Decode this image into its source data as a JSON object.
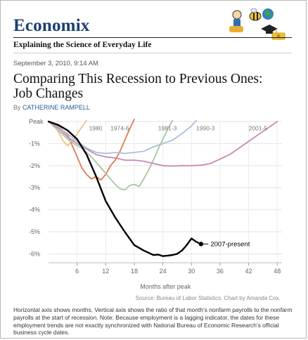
{
  "blog": {
    "name": "Economix",
    "tagline": "Explaining the Science of Everyday Life"
  },
  "article": {
    "dateline": "September 3, 2010, 9:14 AM",
    "title": "Comparing This Recession to Previous Ones: Job Changes",
    "byline_prefix": "By",
    "author": "CATHERINE RAMPELL",
    "source": "Source: Bureau of Labor Statistics. Chart by Amanda Cox.",
    "notes": "Horizontal axis shows months. Vertical axis shows the ratio of that month’s nonfarm payrolls to the nonfarm payrolls at the start of recession. Note: Because employment is a lagging indicator, the dates for these employment trends are not exactly synchronized with National Bureau of Economic Research’s official business cycle dates."
  },
  "icons": [
    "economist-figure-icon",
    "bee-icon",
    "globe-icon",
    "graduation-cap-icon",
    "money-icon"
  ],
  "chart_data": {
    "type": "line",
    "xlabel": "Months after peak",
    "ylabel": "",
    "xlim": [
      0,
      49
    ],
    "ylim": [
      -6.4,
      0
    ],
    "x_ticks": [
      6,
      12,
      18,
      24,
      30,
      36,
      42,
      48
    ],
    "y_ticks": [
      {
        "value": 0,
        "label": "Peak"
      },
      {
        "value": -1,
        "label": "-1%"
      },
      {
        "value": -2,
        "label": "-2%"
      },
      {
        "value": -3,
        "label": "-3%"
      },
      {
        "value": -4,
        "label": "-4%"
      },
      {
        "value": -5,
        "label": "-5%"
      },
      {
        "value": -6,
        "label": "-6%"
      }
    ],
    "grid": true,
    "series": [
      {
        "name": "1980",
        "color": "#f2c08a",
        "width": 1.8,
        "x": [
          0,
          1,
          2,
          3,
          4,
          5,
          6,
          7,
          8
        ],
        "y": [
          0,
          -0.15,
          -0.45,
          -0.85,
          -1.1,
          -0.9,
          -0.55,
          -0.25,
          0.05
        ]
      },
      {
        "name": "1974-6",
        "color": "#e07b4e",
        "width": 1.8,
        "x": [
          0,
          2,
          4,
          5,
          6,
          7,
          8,
          9,
          10,
          11,
          12,
          13,
          14,
          15,
          16,
          17,
          18
        ],
        "y": [
          0,
          -0.2,
          -0.6,
          -1.1,
          -1.6,
          -2.1,
          -2.4,
          -2.6,
          -2.5,
          -2.65,
          -2.4,
          -2.0,
          -1.75,
          -1.35,
          -0.85,
          -0.35,
          0.1
        ]
      },
      {
        "name": "1981-3",
        "color": "#a7c7a0",
        "width": 1.8,
        "x": [
          0,
          2,
          4,
          6,
          7,
          8,
          9,
          10,
          11,
          12,
          13,
          14,
          15,
          16,
          17,
          18,
          19,
          20,
          21,
          22,
          23,
          24,
          25,
          26
        ],
        "y": [
          0,
          -0.4,
          -0.8,
          -1.1,
          -1.2,
          -1.4,
          -1.6,
          -1.85,
          -2.1,
          -2.35,
          -2.6,
          -2.85,
          -3.05,
          -3.1,
          -2.9,
          -2.85,
          -2.95,
          -2.6,
          -2.2,
          -1.75,
          -1.25,
          -0.8,
          -0.35,
          0.05
        ]
      },
      {
        "name": "1990-3",
        "color": "#a9bedc",
        "width": 1.8,
        "x": [
          0,
          2,
          4,
          6,
          8,
          10,
          12,
          14,
          16,
          18,
          20,
          22,
          24,
          26,
          28,
          30,
          31
        ],
        "y": [
          0,
          -0.25,
          -0.55,
          -0.9,
          -1.2,
          -1.4,
          -1.45,
          -1.4,
          -1.45,
          -1.4,
          -1.35,
          -1.15,
          -1.0,
          -0.85,
          -0.55,
          -0.2,
          0.05
        ]
      },
      {
        "name": "2001-5",
        "color": "#c48ab5",
        "width": 1.8,
        "x": [
          0,
          2,
          4,
          6,
          8,
          10,
          12,
          14,
          16,
          18,
          20,
          22,
          24,
          26,
          28,
          30,
          32,
          34,
          36,
          38,
          40,
          42,
          44,
          46,
          48
        ],
        "y": [
          0,
          -0.3,
          -0.7,
          -1.0,
          -1.25,
          -1.5,
          -1.6,
          -1.65,
          -1.75,
          -1.75,
          -1.8,
          -1.9,
          -2.0,
          -2.02,
          -2.0,
          -2.0,
          -1.98,
          -1.9,
          -1.7,
          -1.5,
          -1.2,
          -0.9,
          -0.6,
          -0.3,
          0.0
        ]
      },
      {
        "name": "2007-present",
        "color": "#000000",
        "width": 2.4,
        "x": [
          0,
          2,
          4,
          6,
          8,
          10,
          12,
          14,
          16,
          18,
          20,
          22,
          23,
          24,
          25,
          26,
          27,
          28,
          29,
          30,
          31,
          32
        ],
        "y": [
          0,
          -0.15,
          -0.4,
          -0.8,
          -1.5,
          -2.5,
          -3.6,
          -4.35,
          -5.0,
          -5.6,
          -5.85,
          -6.05,
          -6.03,
          -6.1,
          -6.08,
          -6.05,
          -6.0,
          -5.85,
          -5.6,
          -5.3,
          -5.45,
          -5.55
        ]
      }
    ],
    "series_labels": [
      {
        "series": "1980",
        "text": "1980",
        "x": 8.5,
        "y": -0.3
      },
      {
        "series": "1974-6",
        "text": "1974-6",
        "x": 13,
        "y": -0.3
      },
      {
        "series": "1981-3",
        "text": "1981-3",
        "x": 23,
        "y": -0.3
      },
      {
        "series": "1990-3",
        "text": "1990-3",
        "x": 31,
        "y": -0.3
      },
      {
        "series": "2001-5",
        "text": "2001-5",
        "x": 42,
        "y": -0.3
      },
      {
        "series": "2007-present",
        "text": "2007-present",
        "x": 34,
        "y": -5.55
      }
    ]
  }
}
